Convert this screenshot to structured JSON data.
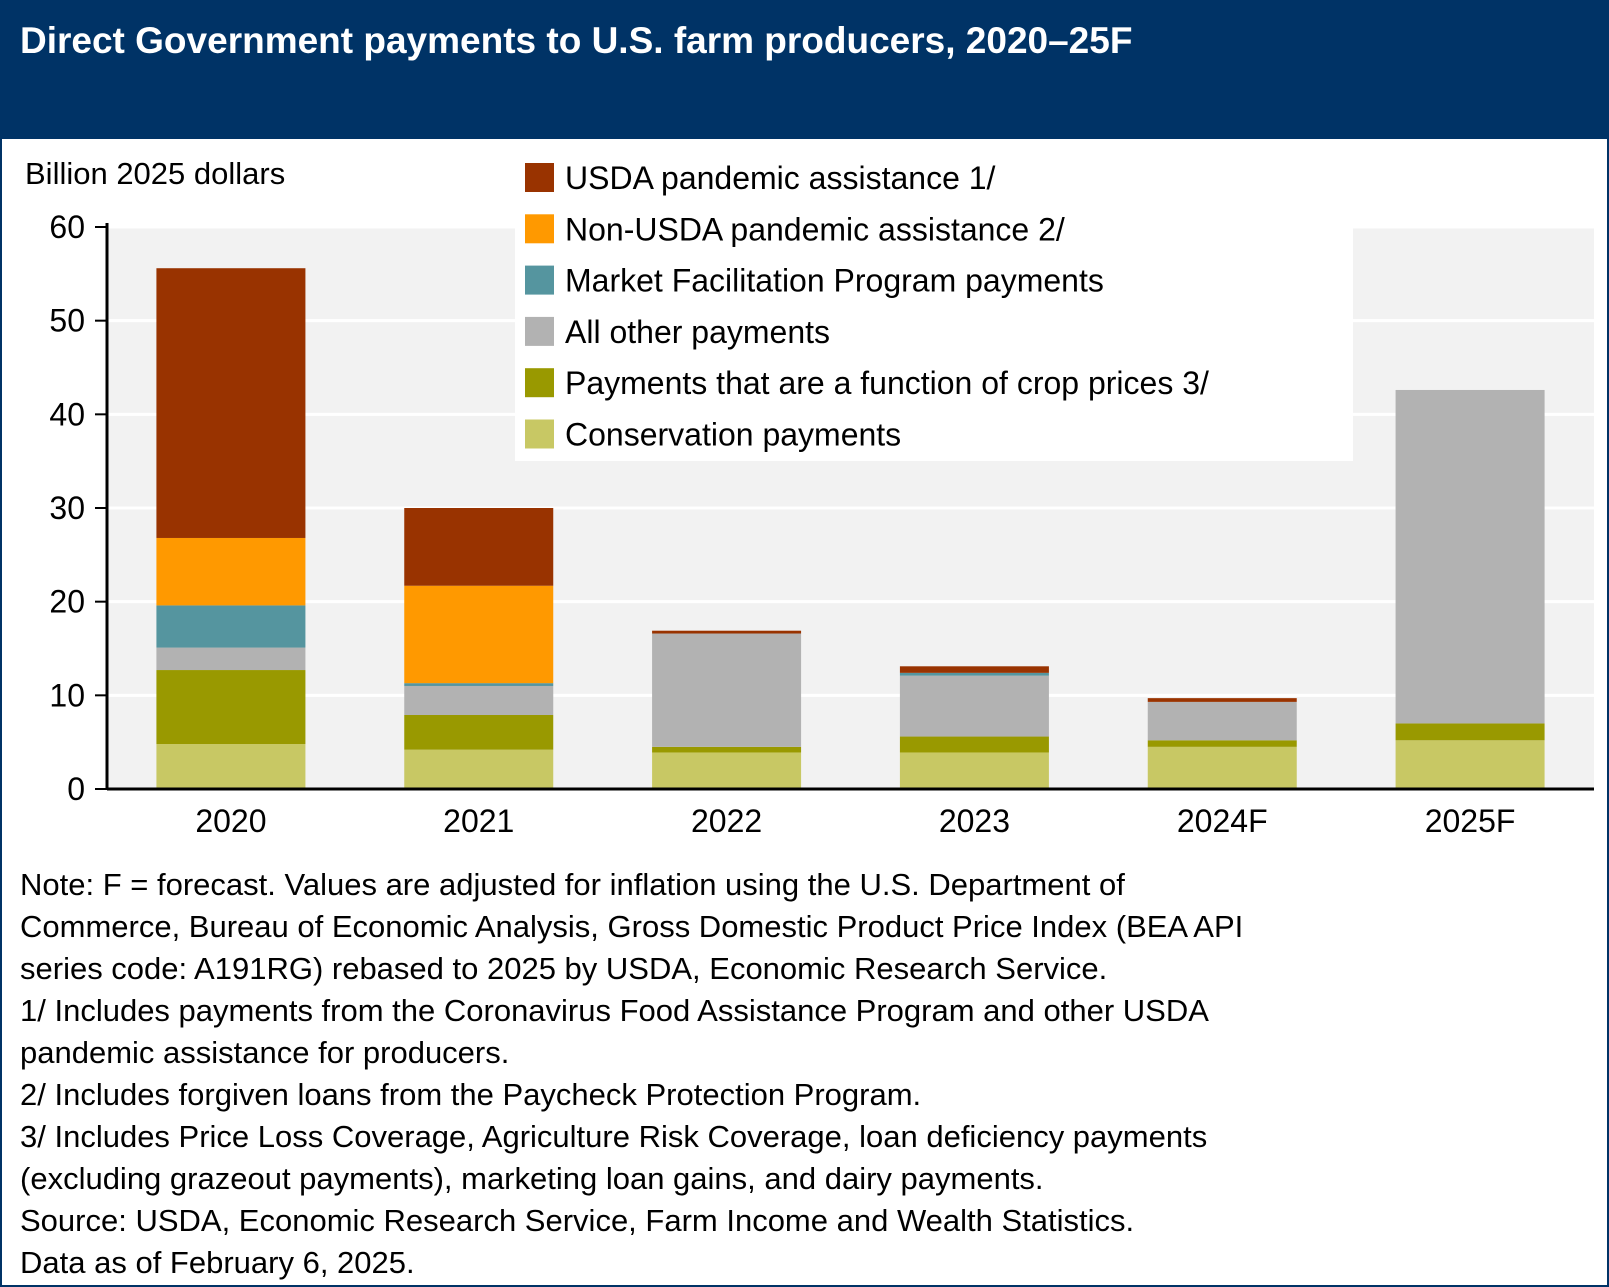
{
  "title": "Direct Government payments to U.S. farm producers, 2020–25F",
  "chart_data": {
    "type": "bar",
    "stacked": true,
    "ylabel": "Billion 2025 dollars",
    "ylim": [
      0,
      60
    ],
    "yticks": [
      0,
      10,
      20,
      30,
      40,
      50,
      60
    ],
    "grid": true,
    "legend_position": "top-center",
    "categories": [
      "2020",
      "2021",
      "2022",
      "2023",
      "2024F",
      "2025F"
    ],
    "series": [
      {
        "name": "Conservation payments",
        "color": "#C8C864",
        "values": [
          4.8,
          4.2,
          3.9,
          3.9,
          4.5,
          5.2
        ]
      },
      {
        "name": "Payments that are a function of crop prices 3/",
        "color": "#999900",
        "values": [
          7.9,
          3.7,
          0.6,
          1.7,
          0.7,
          1.8
        ]
      },
      {
        "name": "All other payments",
        "color": "#B2B2B2",
        "values": [
          2.4,
          3.1,
          12.1,
          6.5,
          4.1,
          35.6
        ]
      },
      {
        "name": "Market Facilitation Program payments",
        "color": "#55959F",
        "values": [
          4.5,
          0.3,
          0,
          0.3,
          0,
          0
        ]
      },
      {
        "name": "Non-USDA pandemic assistance 2/",
        "color": "#FF9900",
        "values": [
          7.2,
          10.4,
          0,
          0,
          0,
          0
        ]
      },
      {
        "name": "USDA pandemic assistance 1/",
        "color": "#993300",
        "values": [
          28.8,
          8.3,
          0.3,
          0.7,
          0.4,
          0
        ]
      }
    ],
    "legend_order": [
      "USDA pandemic assistance 1/",
      "Non-USDA pandemic assistance 2/",
      "Market Facilitation Program payments",
      "All other payments",
      "Payments that are a function of crop prices 3/",
      "Conservation payments"
    ]
  },
  "notes": [
    "Note: F = forecast. Values are adjusted for inflation using the U.S. Department of",
    "Commerce, Bureau of Economic Analysis, Gross Domestic Product Price Index (BEA API",
    "series code: A191RG) rebased to 2025 by USDA, Economic Research Service.",
    "1/ Includes payments from the Coronavirus Food Assistance Program and other USDA",
    "pandemic assistance for producers.",
    "2/ Includes forgiven loans from the Paycheck Protection Program.",
    "3/ Includes Price Loss Coverage, Agriculture Risk Coverage, loan deficiency payments",
    "(excluding grazeout payments), marketing loan gains, and dairy payments.",
    "Source: USDA, Economic Research Service, Farm Income and Wealth Statistics.",
    "Data as of February 6, 2025."
  ],
  "colors": {
    "header": "#003366",
    "plot_bg": "#F2F2F2"
  }
}
